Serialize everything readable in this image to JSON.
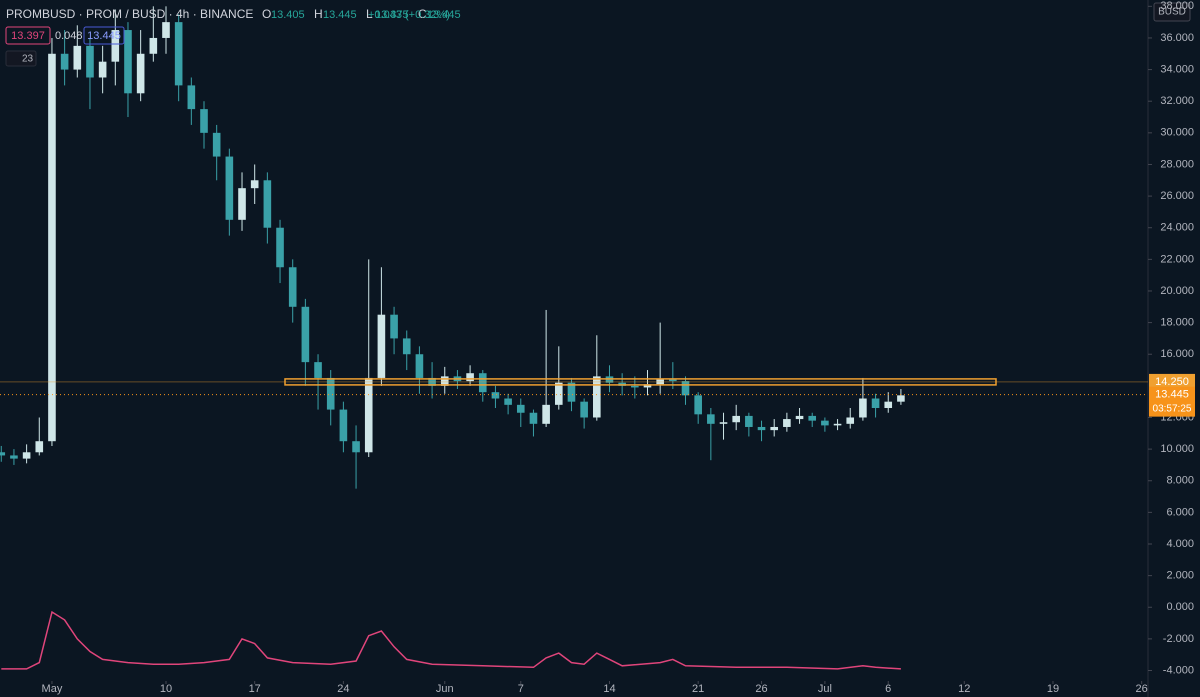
{
  "header": {
    "symbol": "PROMBUSD · PROM / BUSD · 4h · BINANCE",
    "ohlc": [
      [
        "O",
        "13.405"
      ],
      [
        "H",
        "13.445"
      ],
      [
        "L",
        "13.375"
      ],
      [
        "C",
        "13.445"
      ]
    ],
    "change": "+0.043 (+0.32%)",
    "badges": [
      "13.397",
      "0.048",
      "13.445"
    ],
    "indicator_count": "23",
    "currency": "BUSD"
  },
  "chart_data": {
    "type": "candlestick",
    "x": [
      -4,
      -3,
      -2,
      -1,
      0,
      1,
      2,
      3,
      4,
      5,
      6,
      7,
      8,
      9,
      10,
      11,
      12,
      13,
      14,
      15,
      16,
      17,
      18,
      19,
      20,
      21,
      22,
      23,
      24,
      25,
      26,
      27,
      28,
      29,
      30,
      31,
      32,
      33,
      34,
      35,
      36,
      37,
      38,
      39,
      40,
      41,
      42,
      43,
      44,
      45,
      46,
      47,
      48,
      49,
      50,
      51,
      52,
      53,
      54,
      55,
      56,
      57,
      58,
      59,
      60,
      61,
      62,
      63,
      64,
      65,
      66,
      67
    ],
    "open": [
      9.8,
      9.6,
      9.4,
      9.8,
      10.5,
      35.0,
      34.0,
      35.5,
      33.5,
      34.5,
      36.5,
      32.5,
      35.0,
      36.0,
      37.0,
      33.0,
      31.5,
      30.0,
      28.5,
      24.5,
      26.5,
      27.0,
      24.0,
      21.5,
      19.0,
      15.5,
      14.5,
      12.5,
      10.5,
      9.8,
      14.5,
      18.5,
      17.0,
      16.0,
      14.5,
      14.0,
      14.6,
      14.3,
      14.8,
      13.6,
      13.2,
      12.8,
      12.3,
      11.6,
      12.8,
      14.2,
      13.0,
      12.0,
      14.6,
      14.2,
      14.0,
      13.9,
      14.1,
      14.4,
      14.3,
      13.4,
      12.2,
      11.6,
      11.7,
      12.1,
      11.4,
      11.2,
      11.4,
      11.9,
      12.1,
      11.8,
      11.5,
      11.6,
      12.0,
      13.2,
      12.6,
      13.0
    ],
    "high": [
      10.2,
      10.0,
      10.3,
      12.0,
      36.0,
      36.5,
      36.8,
      36.0,
      35.5,
      37.8,
      37.0,
      36.5,
      38.0,
      38.0,
      37.5,
      33.5,
      32.0,
      30.5,
      29.0,
      27.5,
      28.0,
      27.5,
      24.5,
      22.0,
      19.5,
      16.0,
      15.0,
      13.0,
      11.5,
      22.0,
      21.5,
      19.0,
      17.5,
      16.5,
      15.5,
      15.2,
      15.0,
      15.3,
      15.0,
      14.0,
      13.5,
      13.2,
      12.5,
      18.8,
      16.5,
      14.5,
      13.2,
      17.2,
      15.3,
      14.8,
      14.6,
      15.0,
      18.0,
      15.5,
      14.6,
      13.6,
      12.6,
      12.3,
      12.8,
      12.3,
      11.8,
      11.9,
      12.3,
      12.6,
      12.3,
      12.0,
      11.9,
      12.6,
      14.5,
      13.5,
      13.6,
      13.8
    ],
    "low": [
      9.2,
      9.0,
      9.1,
      9.6,
      10.2,
      33.0,
      33.5,
      31.5,
      32.5,
      33.0,
      31.0,
      32.0,
      34.5,
      35.0,
      32.0,
      30.5,
      29.0,
      27.0,
      23.5,
      23.8,
      25.5,
      23.0,
      20.5,
      18.0,
      14.0,
      12.5,
      11.5,
      9.8,
      7.5,
      9.5,
      14.0,
      16.0,
      15.0,
      13.5,
      13.2,
      13.5,
      13.8,
      14.0,
      13.0,
      12.6,
      12.2,
      11.4,
      10.8,
      11.4,
      12.5,
      12.4,
      11.3,
      11.8,
      13.6,
      13.4,
      13.2,
      13.4,
      13.5,
      13.8,
      12.8,
      11.6,
      9.3,
      10.6,
      11.2,
      10.8,
      10.5,
      10.8,
      11.1,
      11.6,
      11.4,
      11.1,
      11.2,
      11.3,
      11.8,
      12.0,
      12.3,
      12.8
    ],
    "close": [
      9.6,
      9.4,
      9.8,
      10.5,
      35.0,
      34.0,
      35.5,
      33.5,
      34.5,
      36.5,
      32.5,
      35.0,
      36.0,
      37.0,
      33.0,
      31.5,
      30.0,
      28.5,
      24.5,
      26.5,
      27.0,
      24.0,
      21.5,
      19.0,
      15.5,
      14.5,
      12.5,
      10.5,
      9.8,
      14.5,
      18.5,
      17.0,
      16.0,
      14.5,
      14.0,
      14.6,
      14.3,
      14.8,
      13.6,
      13.2,
      12.8,
      12.3,
      11.6,
      12.8,
      14.2,
      13.0,
      12.0,
      14.6,
      14.2,
      14.0,
      13.9,
      14.1,
      14.4,
      14.3,
      13.4,
      12.2,
      11.6,
      11.7,
      12.1,
      11.4,
      11.2,
      11.4,
      11.9,
      12.1,
      11.8,
      11.5,
      11.6,
      12.0,
      13.2,
      12.6,
      13.0,
      13.4
    ],
    "up_color": "#cfe6e8",
    "down_color": "#3aa1a8",
    "indicator": {
      "color": "#e0457b",
      "x": [
        -4,
        -2,
        -1,
        0,
        1,
        2,
        3,
        4,
        6,
        8,
        10,
        12,
        14,
        15,
        16,
        17,
        19,
        22,
        24,
        25,
        26,
        27,
        28,
        30,
        34,
        38,
        39,
        40,
        41,
        42,
        43,
        44,
        45,
        48,
        49,
        50,
        54,
        58,
        62,
        64,
        65,
        67
      ],
      "values": [
        -3.9,
        -3.9,
        -3.5,
        -0.3,
        -0.8,
        -2.0,
        -2.8,
        -3.3,
        -3.5,
        -3.6,
        -3.6,
        -3.5,
        -3.3,
        -2.0,
        -2.3,
        -3.2,
        -3.5,
        -3.6,
        -3.4,
        -1.8,
        -1.5,
        -2.5,
        -3.3,
        -3.6,
        -3.7,
        -3.8,
        -3.2,
        -2.9,
        -3.5,
        -3.6,
        -2.9,
        -3.3,
        -3.7,
        -3.5,
        -3.3,
        -3.7,
        -3.8,
        -3.8,
        -3.9,
        -3.7,
        -3.8,
        -3.9
      ]
    },
    "level": {
      "value": 14.25,
      "label": "14.250",
      "color": "#f0a030"
    },
    "last_price": {
      "value": 13.445,
      "label": "13.445",
      "countdown": "03:57:25",
      "color": "#f7931a"
    },
    "xlim": [
      -4.1,
      86.5
    ],
    "xticks": [
      {
        "value": 0,
        "label": "May"
      },
      {
        "value": 9,
        "label": "10"
      },
      {
        "value": 16,
        "label": "17"
      },
      {
        "value": 23,
        "label": "24"
      },
      {
        "value": 31,
        "label": "Jun"
      },
      {
        "value": 37,
        "label": "7"
      },
      {
        "value": 44,
        "label": "14"
      },
      {
        "value": 51,
        "label": "21"
      },
      {
        "value": 56,
        "label": "26"
      },
      {
        "value": 61,
        "label": "Jul"
      },
      {
        "value": 66,
        "label": "6"
      },
      {
        "value": 72,
        "label": "12"
      },
      {
        "value": 79,
        "label": "19"
      },
      {
        "value": 86,
        "label": "26"
      }
    ],
    "ylim": [
      -4.6,
      38.4
    ],
    "yticks": [
      {
        "value": 38,
        "label": "38.000"
      },
      {
        "value": 36,
        "label": "36.000"
      },
      {
        "value": 34,
        "label": "34.000"
      },
      {
        "value": 32,
        "label": "32.000"
      },
      {
        "value": 30,
        "label": "30.000"
      },
      {
        "value": 28,
        "label": "28.000"
      },
      {
        "value": 26,
        "label": "26.000"
      },
      {
        "value": 24,
        "label": "24.000"
      },
      {
        "value": 22,
        "label": "22.000"
      },
      {
        "value": 20,
        "label": "20.000"
      },
      {
        "value": 18,
        "label": "18.000"
      },
      {
        "value": 16,
        "label": "16.000"
      },
      {
        "value": 12,
        "label": "12.000"
      },
      {
        "value": 10,
        "label": "10.000"
      },
      {
        "value": 8,
        "label": "8.000"
      },
      {
        "value": 6,
        "label": "6.000"
      },
      {
        "value": 4,
        "label": "4.000"
      },
      {
        "value": 2,
        "label": "2.000"
      },
      {
        "value": 0,
        "label": "0.000"
      },
      {
        "value": -2,
        "label": "-2.000"
      },
      {
        "value": -4,
        "label": "-4.000"
      }
    ]
  }
}
